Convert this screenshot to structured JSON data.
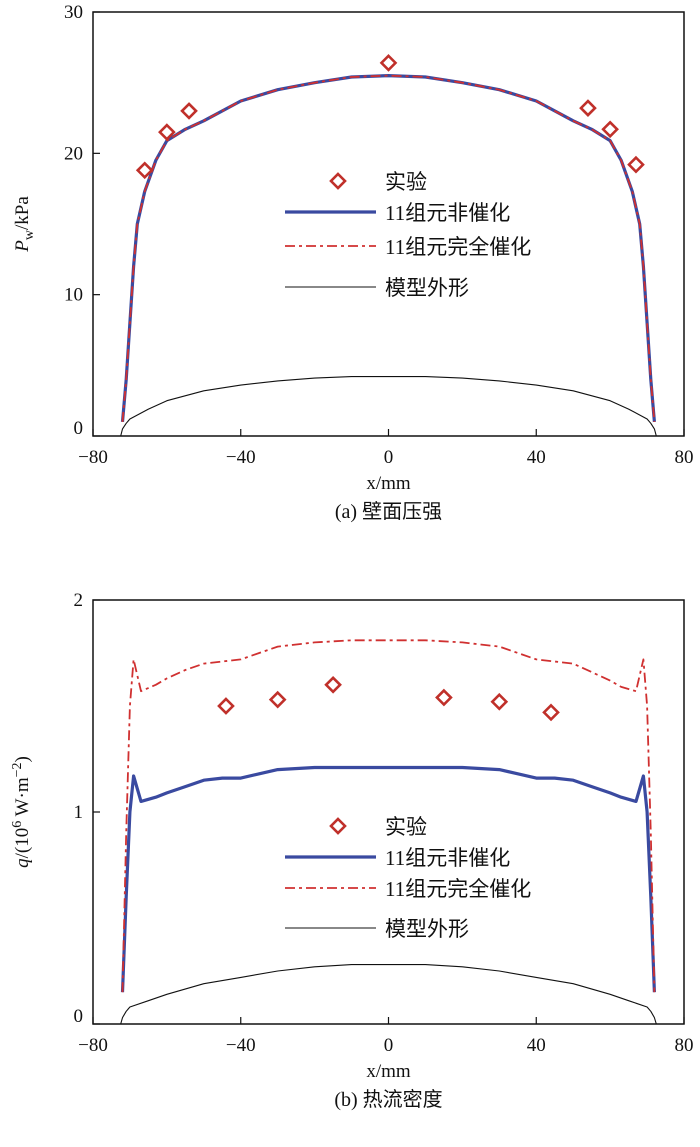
{
  "colors": {
    "experiment": "#c0302a",
    "noncatalytic": "#3a4aa0",
    "catalytic": "#d03030",
    "model": "#111111"
  },
  "chart_data": [
    {
      "type": "line",
      "caption": "(a) 壁面压强",
      "xlabel": "x/mm",
      "ylabel_main": "P",
      "ylabel_sub": "w",
      "ylabel_rest": "/kPa",
      "xlim": [
        -80,
        80
      ],
      "ylim": [
        0,
        30
      ],
      "xticks": [
        -80,
        -40,
        0,
        40,
        80
      ],
      "xtick_labels": [
        "−80",
        "−40",
        "0",
        "40",
        "80"
      ],
      "yticks": [
        0,
        10,
        20,
        30
      ],
      "ytick_labels": [
        "0",
        "10",
        "20",
        "30"
      ],
      "legend": [
        "实验",
        "11组元非催化",
        "11组元完全催化",
        "模型外形"
      ],
      "legend_position": "center",
      "series": [
        {
          "name": "实验",
          "kind": "markers",
          "x": [
            -66,
            -60,
            -54,
            0,
            54,
            60,
            67
          ],
          "y": [
            18.8,
            21.5,
            23.0,
            26.4,
            23.2,
            21.7,
            19.2
          ]
        },
        {
          "name": "11组元非催化",
          "kind": "solid",
          "x": [
            -72,
            -71,
            -70,
            -69,
            -68,
            -66,
            -63,
            -60,
            -55,
            -50,
            -40,
            -30,
            -20,
            -10,
            0,
            10,
            20,
            30,
            40,
            50,
            55,
            60,
            63,
            66,
            68,
            69,
            70,
            71,
            72
          ],
          "y": [
            1,
            4,
            8,
            12,
            15,
            17.3,
            19.5,
            20.9,
            21.7,
            22.3,
            23.7,
            24.5,
            25.0,
            25.4,
            25.5,
            25.4,
            25.0,
            24.5,
            23.7,
            22.3,
            21.7,
            20.9,
            19.5,
            17.3,
            15,
            12,
            8,
            4,
            1
          ]
        },
        {
          "name": "11组元完全催化",
          "kind": "dashdot",
          "x": [
            -72,
            -71,
            -70,
            -69,
            -68,
            -66,
            -63,
            -60,
            -55,
            -50,
            -40,
            -30,
            -20,
            -10,
            0,
            10,
            20,
            30,
            40,
            50,
            55,
            60,
            63,
            66,
            68,
            69,
            70,
            71,
            72
          ],
          "y": [
            1,
            4,
            8,
            12,
            15,
            17.3,
            19.5,
            20.9,
            21.7,
            22.3,
            23.7,
            24.5,
            25.0,
            25.4,
            25.5,
            25.4,
            25.0,
            24.5,
            23.7,
            22.3,
            21.7,
            20.9,
            19.5,
            17.3,
            15,
            12,
            8,
            4,
            1
          ]
        },
        {
          "name": "模型外形",
          "kind": "thin",
          "x": [
            -72.5,
            -72,
            -71,
            -70,
            -65,
            -60,
            -50,
            -40,
            -30,
            -20,
            -10,
            0,
            10,
            20,
            30,
            40,
            50,
            60,
            65,
            70,
            71,
            72,
            72.5
          ],
          "y": [
            0,
            0.5,
            0.9,
            1.2,
            1.9,
            2.5,
            3.2,
            3.6,
            3.9,
            4.1,
            4.2,
            4.2,
            4.2,
            4.1,
            3.9,
            3.6,
            3.2,
            2.5,
            1.9,
            1.2,
            0.9,
            0.5,
            0
          ]
        }
      ]
    },
    {
      "type": "line",
      "caption": "(b) 热流密度",
      "xlabel": "x/mm",
      "ylabel_main": "q",
      "ylabel_rest": "/(10",
      "ylabel_sup": "6",
      "ylabel_unit": " W·m",
      "ylabel_sup2": "−2",
      "ylabel_end": ")",
      "xlim": [
        -80,
        80
      ],
      "ylim": [
        0,
        2
      ],
      "xticks": [
        -80,
        -40,
        0,
        40,
        80
      ],
      "xtick_labels": [
        "−80",
        "−40",
        "0",
        "40",
        "80"
      ],
      "yticks": [
        0,
        1,
        2
      ],
      "ytick_labels": [
        "0",
        "1",
        "2"
      ],
      "legend": [
        "实验",
        "11组元非催化",
        "11组元完全催化",
        "模型外形"
      ],
      "legend_position": "center",
      "series": [
        {
          "name": "实验",
          "kind": "markers",
          "x": [
            -44,
            -30,
            -15,
            15,
            30,
            44
          ],
          "y": [
            1.5,
            1.53,
            1.6,
            1.54,
            1.52,
            1.47
          ]
        },
        {
          "name": "11组元非催化",
          "kind": "solid",
          "x": [
            -72,
            -71,
            -70,
            -69,
            -67,
            -63,
            -60,
            -55,
            -50,
            -45,
            -40,
            -35,
            -30,
            -20,
            -10,
            0,
            10,
            20,
            30,
            35,
            40,
            45,
            50,
            55,
            60,
            63,
            67,
            69,
            70,
            71,
            72
          ],
          "y": [
            0.15,
            0.6,
            1.0,
            1.17,
            1.05,
            1.07,
            1.09,
            1.12,
            1.15,
            1.16,
            1.16,
            1.18,
            1.2,
            1.21,
            1.21,
            1.21,
            1.21,
            1.21,
            1.2,
            1.18,
            1.16,
            1.16,
            1.15,
            1.12,
            1.09,
            1.07,
            1.05,
            1.17,
            1.0,
            0.6,
            0.15
          ]
        },
        {
          "name": "11组元完全催化",
          "kind": "dashdot",
          "x": [
            -72,
            -71,
            -70,
            -69,
            -67,
            -63,
            -60,
            -55,
            -50,
            -45,
            -40,
            -35,
            -30,
            -20,
            -10,
            0,
            10,
            20,
            30,
            35,
            40,
            45,
            50,
            55,
            60,
            63,
            67,
            69,
            70,
            71,
            72
          ],
          "y": [
            0.15,
            0.9,
            1.5,
            1.72,
            1.57,
            1.6,
            1.63,
            1.67,
            1.7,
            1.71,
            1.72,
            1.75,
            1.78,
            1.8,
            1.81,
            1.81,
            1.81,
            1.8,
            1.78,
            1.75,
            1.72,
            1.71,
            1.7,
            1.66,
            1.62,
            1.59,
            1.57,
            1.72,
            1.5,
            0.9,
            0.15
          ]
        },
        {
          "name": "模型外形",
          "kind": "thin",
          "x": [
            -72.5,
            -72,
            -71,
            -70,
            -65,
            -60,
            -50,
            -40,
            -30,
            -20,
            -10,
            0,
            10,
            20,
            30,
            40,
            50,
            60,
            65,
            70,
            71,
            72,
            72.5
          ],
          "y": [
            0,
            0.03,
            0.06,
            0.08,
            0.11,
            0.14,
            0.19,
            0.22,
            0.25,
            0.27,
            0.28,
            0.28,
            0.28,
            0.27,
            0.25,
            0.22,
            0.19,
            0.14,
            0.11,
            0.08,
            0.06,
            0.03,
            0
          ]
        }
      ]
    }
  ]
}
